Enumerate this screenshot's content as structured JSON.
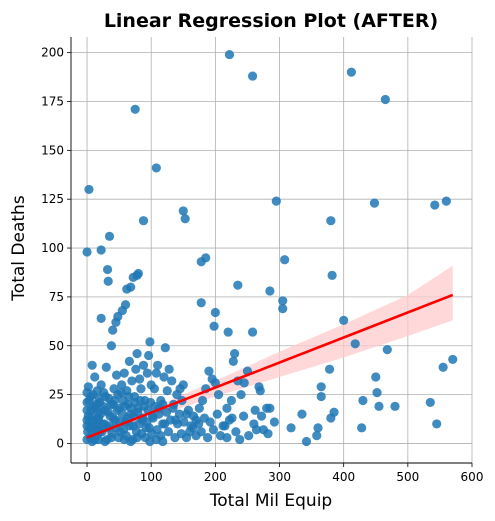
{
  "chart_data": {
    "type": "scatter",
    "title": "Linear Regression Plot (AFTER)",
    "xlabel": "Total Mil Equip",
    "ylabel": "Total Deaths",
    "xlim": [
      -25,
      600
    ],
    "ylim": [
      -10,
      208
    ],
    "xticks": [
      0,
      100,
      200,
      300,
      400,
      500,
      600
    ],
    "yticks": [
      0,
      25,
      50,
      75,
      100,
      125,
      150,
      175,
      200
    ],
    "grid": true,
    "colors": {
      "points": "#1f77b4",
      "regression": "#ff0000",
      "band": "#ffcccc"
    },
    "regression": {
      "line": [
        [
          0,
          3
        ],
        [
          570,
          76
        ]
      ],
      "ci_upper": [
        [
          0,
          5
        ],
        [
          100,
          18
        ],
        [
          200,
          32
        ],
        [
          300,
          47
        ],
        [
          400,
          61
        ],
        [
          500,
          76
        ],
        [
          570,
          91
        ]
      ],
      "ci_lower": [
        [
          0,
          1
        ],
        [
          100,
          13
        ],
        [
          200,
          24
        ],
        [
          300,
          34
        ],
        [
          400,
          44
        ],
        [
          500,
          55
        ],
        [
          570,
          63
        ]
      ]
    },
    "points": [
      [
        3,
        130
      ],
      [
        0,
        98
      ],
      [
        22,
        99
      ],
      [
        32,
        89
      ],
      [
        33,
        83
      ],
      [
        35,
        106
      ],
      [
        22,
        64
      ],
      [
        40,
        58
      ],
      [
        45,
        62
      ],
      [
        48,
        65
      ],
      [
        55,
        68
      ],
      [
        60,
        71
      ],
      [
        62,
        79
      ],
      [
        68,
        80
      ],
      [
        72,
        85
      ],
      [
        78,
        86
      ],
      [
        80,
        87
      ],
      [
        75,
        171
      ],
      [
        88,
        114
      ],
      [
        108,
        141
      ],
      [
        150,
        119
      ],
      [
        153,
        115
      ],
      [
        178,
        93
      ],
      [
        185,
        95
      ],
      [
        178,
        72
      ],
      [
        200,
        67
      ],
      [
        198,
        60
      ],
      [
        220,
        57
      ],
      [
        235,
        81
      ],
      [
        258,
        57
      ],
      [
        222,
        199
      ],
      [
        258,
        188
      ],
      [
        285,
        78
      ],
      [
        305,
        73
      ],
      [
        308,
        94
      ],
      [
        295,
        124
      ],
      [
        380,
        114
      ],
      [
        382,
        86
      ],
      [
        412,
        190
      ],
      [
        465,
        176
      ],
      [
        448,
        123
      ],
      [
        542,
        122
      ],
      [
        560,
        124
      ],
      [
        400,
        63
      ],
      [
        418,
        51
      ],
      [
        468,
        48
      ],
      [
        570,
        43
      ],
      [
        555,
        39
      ],
      [
        535,
        21
      ],
      [
        545,
        10
      ],
      [
        480,
        19
      ],
      [
        450,
        34
      ],
      [
        452,
        26
      ],
      [
        455,
        19
      ],
      [
        430,
        22
      ],
      [
        428,
        8
      ],
      [
        385,
        16
      ],
      [
        380,
        13
      ],
      [
        378,
        38
      ],
      [
        365,
        29
      ],
      [
        365,
        24
      ],
      [
        360,
        8
      ],
      [
        358,
        4
      ],
      [
        342,
        1
      ],
      [
        335,
        15
      ],
      [
        318,
        8
      ],
      [
        305,
        69
      ],
      [
        285,
        18
      ],
      [
        280,
        18
      ],
      [
        275,
        7
      ],
      [
        270,
        27
      ],
      [
        268,
        29
      ],
      [
        262,
        17
      ],
      [
        260,
        10
      ],
      [
        250,
        37
      ],
      [
        245,
        31
      ],
      [
        240,
        25
      ],
      [
        235,
        32
      ],
      [
        230,
        46
      ],
      [
        228,
        42
      ],
      [
        225,
        22
      ],
      [
        222,
        12
      ],
      [
        218,
        18
      ],
      [
        215,
        9
      ],
      [
        205,
        25
      ],
      [
        200,
        31
      ],
      [
        195,
        33
      ],
      [
        190,
        37
      ],
      [
        185,
        28
      ],
      [
        180,
        22
      ],
      [
        175,
        18
      ],
      [
        170,
        12
      ],
      [
        165,
        8
      ],
      [
        160,
        6
      ],
      [
        155,
        15
      ],
      [
        150,
        30
      ],
      [
        148,
        22
      ],
      [
        145,
        28
      ],
      [
        140,
        25
      ],
      [
        138,
        12
      ],
      [
        135,
        20
      ],
      [
        132,
        32
      ],
      [
        128,
        38
      ],
      [
        125,
        27
      ],
      [
        122,
        49
      ],
      [
        120,
        34
      ],
      [
        118,
        10
      ],
      [
        115,
        22
      ],
      [
        112,
        18
      ],
      [
        110,
        40
      ],
      [
        108,
        36
      ],
      [
        105,
        28
      ],
      [
        102,
        14
      ],
      [
        100,
        30
      ],
      [
        98,
        52
      ],
      [
        96,
        45
      ],
      [
        94,
        36
      ],
      [
        92,
        8
      ],
      [
        90,
        22
      ],
      [
        88,
        40
      ],
      [
        86,
        12
      ],
      [
        84,
        28
      ],
      [
        82,
        33
      ],
      [
        80,
        18
      ],
      [
        78,
        46
      ],
      [
        76,
        38
      ],
      [
        74,
        24
      ],
      [
        72,
        9
      ],
      [
        70,
        32
      ],
      [
        68,
        15
      ],
      [
        66,
        42
      ],
      [
        64,
        20
      ],
      [
        62,
        27
      ],
      [
        60,
        11
      ],
      [
        58,
        36
      ],
      [
        56,
        22
      ],
      [
        54,
        30
      ],
      [
        52,
        6
      ],
      [
        50,
        18
      ],
      [
        48,
        25
      ],
      [
        46,
        35
      ],
      [
        44,
        12
      ],
      [
        42,
        28
      ],
      [
        40,
        20
      ],
      [
        38,
        50
      ],
      [
        36,
        14
      ],
      [
        34,
        23
      ],
      [
        32,
        8
      ],
      [
        30,
        39
      ],
      [
        28,
        17
      ],
      [
        26,
        26
      ],
      [
        24,
        10
      ],
      [
        22,
        30
      ],
      [
        20,
        21
      ],
      [
        18,
        13
      ],
      [
        16,
        27
      ],
      [
        14,
        7
      ],
      [
        12,
        34
      ],
      [
        10,
        19
      ],
      [
        8,
        40
      ],
      [
        6,
        24
      ],
      [
        4,
        11
      ],
      [
        2,
        29
      ],
      [
        0,
        17
      ],
      [
        1,
        6
      ],
      [
        3,
        22
      ],
      [
        5,
        3
      ],
      [
        7,
        14
      ],
      [
        9,
        25
      ],
      [
        11,
        9
      ],
      [
        13,
        18
      ],
      [
        15,
        4
      ],
      [
        17,
        12
      ],
      [
        19,
        23
      ],
      [
        21,
        15
      ],
      [
        23,
        6
      ],
      [
        25,
        19
      ],
      [
        27,
        10
      ],
      [
        29,
        24
      ],
      [
        31,
        2
      ],
      [
        33,
        16
      ],
      [
        35,
        9
      ],
      [
        37,
        20
      ],
      [
        39,
        5
      ],
      [
        41,
        13
      ],
      [
        43,
        22
      ],
      [
        45,
        8
      ],
      [
        47,
        17
      ],
      [
        49,
        3
      ],
      [
        51,
        11
      ],
      [
        53,
        26
      ],
      [
        55,
        15
      ],
      [
        57,
        7
      ],
      [
        59,
        19
      ],
      [
        61,
        4
      ],
      [
        63,
        13
      ],
      [
        65,
        24
      ],
      [
        67,
        9
      ],
      [
        69,
        18
      ],
      [
        71,
        2
      ],
      [
        73,
        14
      ],
      [
        75,
        21
      ],
      [
        77,
        6
      ],
      [
        79,
        16
      ],
      [
        81,
        10
      ],
      [
        83,
        22
      ],
      [
        85,
        5
      ],
      [
        87,
        13
      ],
      [
        89,
        19
      ],
      [
        91,
        3
      ],
      [
        93,
        11
      ],
      [
        95,
        17
      ],
      [
        97,
        8
      ],
      [
        99,
        21
      ],
      [
        101,
        5
      ],
      [
        103,
        13
      ],
      [
        106,
        19
      ],
      [
        109,
        7
      ],
      [
        112,
        15
      ],
      [
        115,
        4
      ],
      [
        118,
        20
      ],
      [
        121,
        10
      ],
      [
        124,
        16
      ],
      [
        127,
        6
      ],
      [
        130,
        12
      ],
      [
        134,
        18
      ],
      [
        137,
        3
      ],
      [
        141,
        10
      ],
      [
        144,
        15
      ],
      [
        147,
        5
      ],
      [
        151,
        11
      ],
      [
        155,
        3
      ],
      [
        158,
        17
      ],
      [
        162,
        9
      ],
      [
        166,
        14
      ],
      [
        170,
        4
      ],
      [
        174,
        10
      ],
      [
        178,
        6
      ],
      [
        183,
        13
      ],
      [
        188,
        3
      ],
      [
        192,
        11
      ],
      [
        197,
        7
      ],
      [
        203,
        15
      ],
      [
        208,
        4
      ],
      [
        212,
        9
      ],
      [
        218,
        3
      ],
      [
        226,
        13
      ],
      [
        232,
        6
      ],
      [
        238,
        2
      ],
      [
        244,
        14
      ],
      [
        252,
        4
      ],
      [
        264,
        7
      ],
      [
        272,
        14
      ],
      [
        282,
        5
      ],
      [
        292,
        11
      ],
      [
        8,
        1
      ],
      [
        18,
        2
      ],
      [
        28,
        1
      ],
      [
        38,
        3
      ],
      [
        58,
        2
      ],
      [
        68,
        1
      ],
      [
        78,
        3
      ],
      [
        98,
        1
      ],
      [
        108,
        2
      ],
      [
        118,
        1
      ],
      [
        0,
        2
      ],
      [
        0,
        9
      ],
      [
        0,
        12
      ],
      [
        0,
        21
      ],
      [
        0,
        26
      ],
      [
        2,
        14
      ],
      [
        4,
        8
      ],
      [
        6,
        17
      ],
      [
        8,
        5
      ],
      [
        10,
        12
      ],
      [
        12,
        2
      ],
      [
        14,
        20
      ],
      [
        16,
        9
      ],
      [
        18,
        16
      ],
      [
        20,
        6
      ]
    ]
  }
}
